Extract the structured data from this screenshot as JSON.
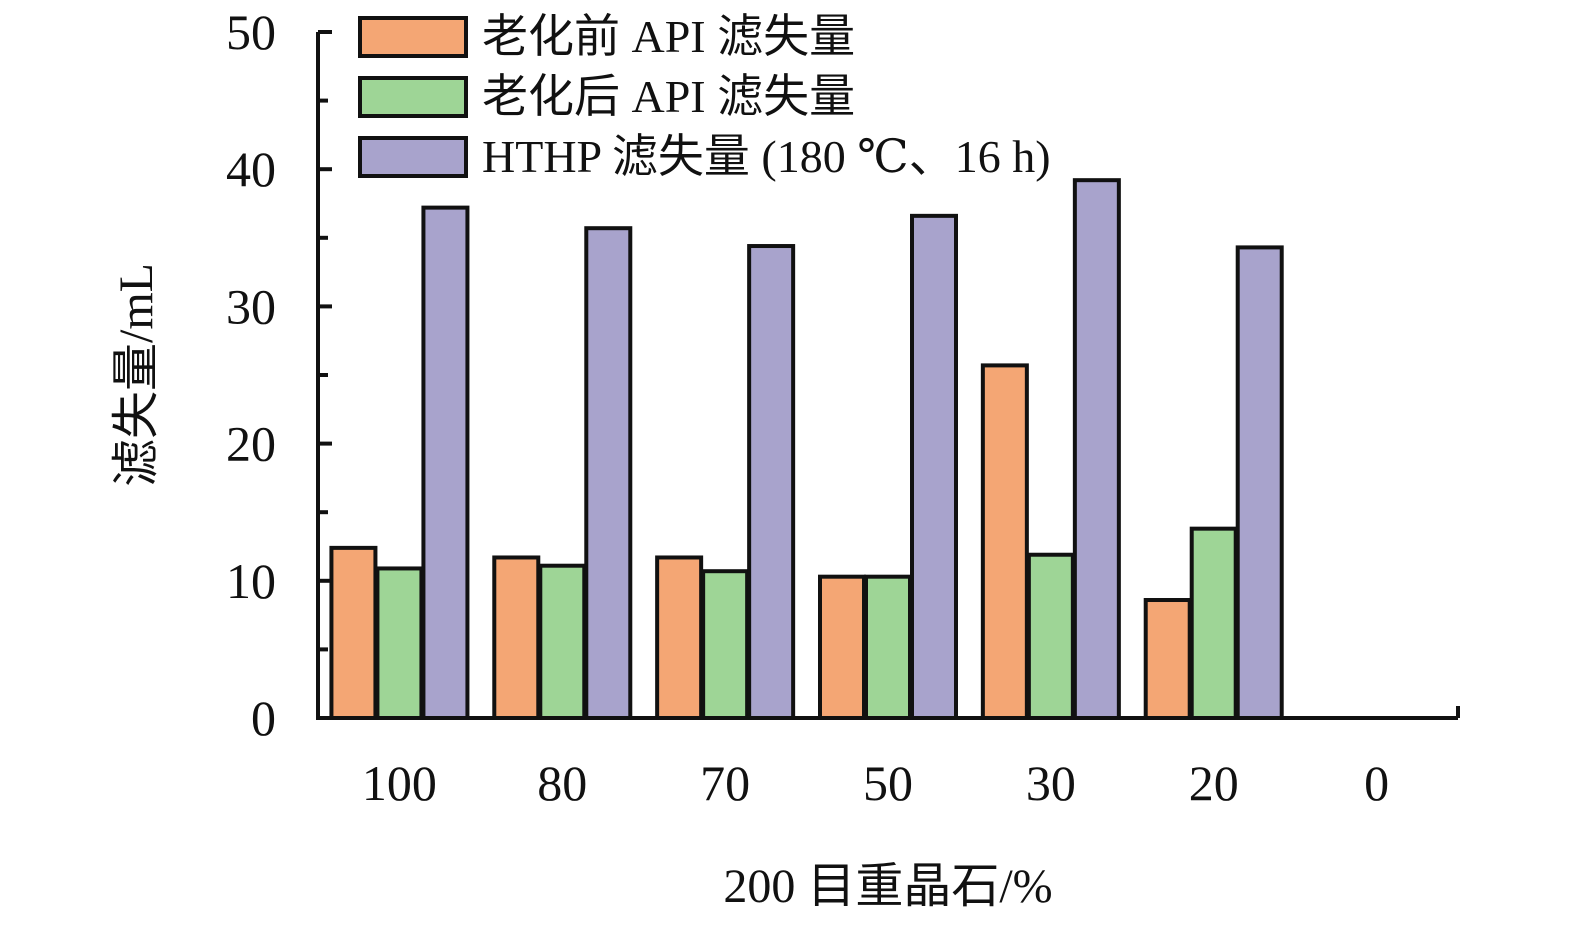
{
  "chart_data": {
    "type": "bar",
    "xlabel": "200 目重晶石/%",
    "ylabel": "滤失量/mL",
    "categories": [
      "100",
      "80",
      "70",
      "50",
      "30",
      "20",
      "0"
    ],
    "ylim": [
      0,
      50
    ],
    "y_ticks": [
      0,
      10,
      20,
      30,
      40,
      50
    ],
    "legend_position": "top-left",
    "series": [
      {
        "name": "老化前 API 滤失量",
        "color": "#f4a674",
        "values": [
          12.4,
          11.7,
          11.7,
          10.3,
          25.7,
          8.6,
          null
        ]
      },
      {
        "name": "老化后 API 滤失量",
        "color": "#9ed596",
        "values": [
          10.9,
          11.1,
          10.7,
          10.3,
          11.9,
          13.8,
          null
        ]
      },
      {
        "name": "HTHP 滤失量 (180 ℃、16 h)",
        "color": "#a8a3cc",
        "values": [
          37.2,
          35.7,
          34.4,
          36.6,
          39.2,
          34.3,
          null
        ]
      }
    ]
  }
}
